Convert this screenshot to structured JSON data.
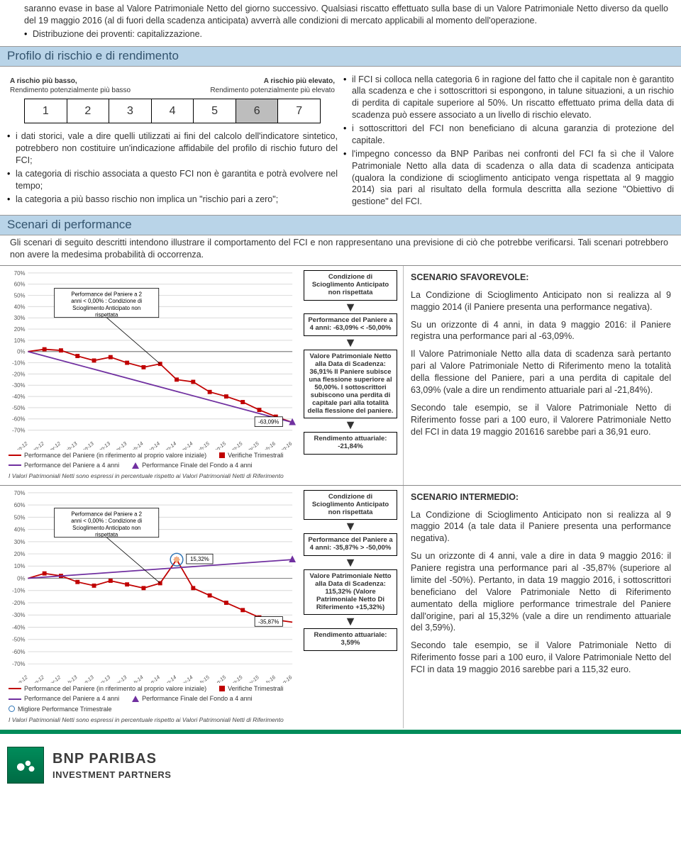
{
  "intro": {
    "p1": "saranno evase in base al Valore Patrimoniale Netto del giorno successivo. Qualsiasi riscatto effettuato sulla base di un Valore Patrimoniale Netto diverso da quello del 19 maggio 2016 (al di fuori della scadenza anticipata) avverrà alle condizioni di mercato applicabili al momento dell'operazione.",
    "b1": "Distribuzione dei proventi: capitalizzazione."
  },
  "riskHeader": "Profilo di rischio e di rendimento",
  "riskLabels": {
    "lowRisk": "A rischio più basso,",
    "highRisk": "A rischio più elevato,",
    "lowReturn": "Rendimento potenzialmente più basso",
    "highReturn": "Rendimento potenzialmente più elevato"
  },
  "riskScale": {
    "cells": [
      "1",
      "2",
      "3",
      "4",
      "5",
      "6",
      "7"
    ],
    "selected": 6
  },
  "riskLeft": {
    "b1": "i dati storici, vale a dire quelli utilizzati ai fini del calcolo dell'indicatore sintetico, potrebbero non costituire un'indicazione affidabile del profilo di rischio futuro del FCI;",
    "b2": "la categoria di rischio associata a questo FCI non è garantita e potrà evolvere nel tempo;",
    "b3": "la categoria a più basso rischio non implica un \"rischio pari a zero\";"
  },
  "riskRight": {
    "b1": "il FCI si colloca nella categoria 6 in ragione del fatto che il capitale non è garantito alla scadenza e che i sottoscrittori si espongono, in talune situazioni, a un rischio di perdita di capitale superiore al 50%. Un riscatto effettuato prima della data di scadenza può essere associato a un livello di rischio elevato.",
    "b2": "i sottoscrittori del FCI non beneficiano di alcuna garanzia di protezione del capitale.",
    "b3": "l'impegno concesso da BNP Paribas nei confronti del FCI fa sì che il Valore Patrimoniale Netto alla data di scadenza o alla data di scadenza anticipata (qualora la condizione di scioglimento anticipato venga rispettata al 9 maggio 2014) sia pari al risultato della formula descritta alla sezione \"Obiettivo di gestione\" del FCI."
  },
  "scenHeader": "Scenari di performance",
  "scenIntro": "Gli scenari di seguito descritti intendono illustrare il comportamento del FCI e non rappresentano una previsione di ciò che potrebbe verificarsi. Tali scenari potrebbero non avere la medesima probabilità di occorrenza.",
  "chart": {
    "yticks": [
      70,
      60,
      50,
      40,
      30,
      20,
      10,
      0,
      -10,
      -20,
      -30,
      -40,
      -50,
      -60,
      -70
    ],
    "yticklabels": [
      "70%",
      "60%",
      "50%",
      "40%",
      "30%",
      "20%",
      "10%",
      "0%",
      "-10%",
      "-20%",
      "-30%",
      "-40%",
      "-50%",
      "-60%",
      "-70%"
    ],
    "xlabels": [
      "mag-12",
      "ago-12",
      "nov-12",
      "feb-13",
      "mag-13",
      "ago-13",
      "nov-13",
      "feb-14",
      "mag-14",
      "ago-14",
      "nov-14",
      "feb-15",
      "mag-15",
      "ago-15",
      "nov-15",
      "feb-16",
      "mag-16"
    ],
    "grid_color": "#d9d9d9",
    "axis_color": "#7f7f7f",
    "line_panier_color": "#c00000",
    "line_fondo_color": "#7030a0",
    "marker_verifiche_color": "#c00000",
    "marker_finale_color": "#7030a0",
    "marker_best_color": "#f4b183",
    "annotation_bg": "#ffffff",
    "annotation_border": "#000000"
  },
  "scenario1": {
    "chart": {
      "panier": [
        0,
        2,
        1,
        -4,
        -8,
        -5,
        -10,
        -14,
        -11,
        -25,
        -27,
        -36,
        -40,
        -45,
        -52,
        -58,
        -63.09
      ],
      "fondo": [
        0,
        null,
        null,
        null,
        null,
        null,
        null,
        null,
        null,
        null,
        null,
        null,
        null,
        null,
        null,
        null,
        -63.09
      ],
      "verifiche_x": [
        1,
        2,
        3,
        4,
        5,
        6,
        7,
        8,
        9,
        10,
        11,
        12,
        13,
        14,
        15
      ],
      "note_box": "Performance del Paniere a 2 anni < 0,00% : Condizione di Scioglimento Anticipato non rispettata",
      "end_label": "-63,09%"
    },
    "boxes": {
      "b1": "Condizione di Scioglimento Anticipato non rispettata",
      "b2": "Performance del Paniere a 4 anni: -63,09% < -50,00%",
      "b3": "Valore Patrimoniale Netto alla Data di Scadenza: 36,91%  Il Paniere subisce una flessione superiore al 50,00%. I sottoscrittori subiscono una perdita di capitale pari alla totalità della flessione del paniere.",
      "b4": "Rendimento attuariale: -21,84%"
    },
    "text": {
      "title": "SCENARIO SFAVOREVOLE:",
      "p1": "La Condizione di Scioglimento Anticipato non si realizza al 9 maggio 2014 (il Paniere presenta una performance negativa).",
      "p2": "Su un orizzonte di 4 anni, in data 9 maggio 2016: il Paniere registra una performance pari al  -63,09%.",
      "p3": "Il Valore Patrimoniale Netto alla data di scadenza sarà pertanto pari al Valore Patrimoniale Netto di Riferimento meno la totalità della flessione del Paniere, pari a una perdita di capitale del 63,09% (vale a dire un rendimento attuariale pari al -21,84%).",
      "p4": "Secondo tale esempio, se il Valore Patrimoniale Netto di Riferimento fosse pari a 100 euro, il Valorere Patrimoniale Netto del FCI in data 19 maggio 201616 sarebbe pari a 36,91 euro."
    }
  },
  "scenario2": {
    "chart": {
      "panier": [
        0,
        4,
        2,
        -3,
        -6,
        -2,
        -5,
        -8,
        -4,
        15.32,
        -8,
        -14,
        -20,
        -26,
        -32,
        -34,
        -35.87
      ],
      "fondo": [
        0,
        null,
        null,
        null,
        null,
        null,
        null,
        null,
        null,
        null,
        null,
        null,
        null,
        null,
        null,
        null,
        15.32
      ],
      "verifiche_x": [
        1,
        2,
        3,
        4,
        5,
        6,
        7,
        8,
        9,
        10,
        11,
        12,
        13,
        14,
        15
      ],
      "best_x": 9,
      "best_y": 15.32,
      "note_box": "Performance del Paniere a 2 anni < 0,00% : Condizione di Scioglimento Anticipato non rispettata",
      "mid_label": "15,32%",
      "end_label": "-35,87%"
    },
    "boxes": {
      "b1": "Condizione di Scioglimento Anticipato non rispettata",
      "b2": "Performance del Paniere a 4 anni: -35,87% > -50,00%",
      "b3": "Valore Patrimoniale Netto alla Data di Scadenza: 115,32% (Valore Patrimoniale Netto Di Riferimento +15,32%)",
      "b4": "Rendimento attuariale: 3,59%"
    },
    "text": {
      "title": "SCENARIO INTERMEDIO:",
      "p1": "La Condizione di Scioglimento Anticipato non si realizza al 9 maggio 2014 (a tale data il Paniere presenta una performance negativa).",
      "p2": "Su un orizzonte di 4 anni, vale a dire in data 9 maggio 2016: il Paniere registra una performance pari al -35,87% (superiore al limite del -50%). Pertanto, in data 19 maggio 2016, i sottoscrittori beneficiano del Valore Patrimoniale Netto di Riferimento aumentato della migliore performance trimestrale del Paniere dall'origine, pari al 15,32% (vale a dire un rendimento attuariale del 3,59%).",
      "p3": "Secondo tale esempio, se il Valore Patrimoniale Netto di Riferimento fosse pari a 100 euro, il Valore Patrimoniale Netto del FCI in data 19 maggio 2016 sarebbe pari a 115,32 euro."
    }
  },
  "legend": {
    "l1": "Performance del Paniere (in riferimento al proprio valore iniziale)",
    "l2": "Verifiche Trimestrali",
    "l3": "Performance del Paniere a 4 anni",
    "l4": "Performance Finale del Fondo a 4 anni",
    "l5": "Migliore Performance Trimestrale",
    "note": "I Valori Patrimoniali Netti sono espressi in percentuale rispetto ai Valori Patrimoniali Netti di Riferimento"
  },
  "footer": {
    "l1": "BNP PARIBAS",
    "l2": "INVESTMENT PARTNERS"
  }
}
